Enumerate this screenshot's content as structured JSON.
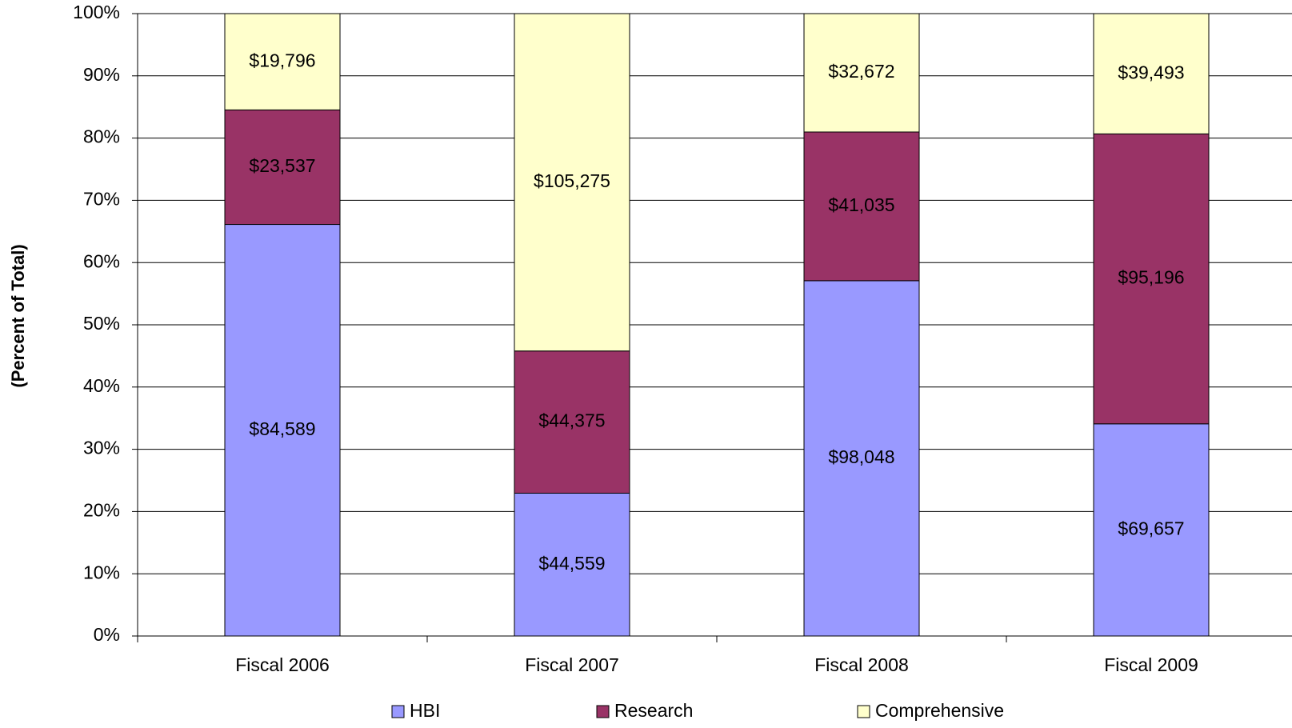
{
  "chart_data": {
    "type": "bar",
    "stacking": "percent",
    "y_label": "(Percent of Total)",
    "categories": [
      "Fiscal 2006",
      "Fiscal 2007",
      "Fiscal 2008",
      "Fiscal 2009"
    ],
    "series": [
      {
        "name": "HBI",
        "color": "#9999ff",
        "values": [
          84589,
          44559,
          98048,
          69657
        ],
        "value_labels": [
          "$84,589",
          "$44,559",
          "$98,048",
          "$69,657"
        ]
      },
      {
        "name": "Research",
        "color": "#993366",
        "values": [
          23537,
          44375,
          41035,
          95196
        ],
        "value_labels": [
          "$23,537",
          "$44,375",
          "$41,035",
          "$95,196"
        ]
      },
      {
        "name": "Comprehensive",
        "color": "#ffffcc",
        "values": [
          19796,
          105275,
          32672,
          39493
        ],
        "value_labels": [
          "$19,796",
          "$105,275",
          "$32,672",
          "$39,493"
        ]
      }
    ],
    "ylim": [
      0,
      100
    ],
    "yticks": [
      {
        "value": 0,
        "label": "0%"
      },
      {
        "value": 10,
        "label": "10%"
      },
      {
        "value": 20,
        "label": "20%"
      },
      {
        "value": 30,
        "label": "30%"
      },
      {
        "value": 40,
        "label": "40%"
      },
      {
        "value": 50,
        "label": "50%"
      },
      {
        "value": 60,
        "label": "60%"
      },
      {
        "value": 70,
        "label": "70%"
      },
      {
        "value": 80,
        "label": "80%"
      },
      {
        "value": 90,
        "label": "90%"
      },
      {
        "value": 100,
        "label": "100%"
      }
    ],
    "grid": true,
    "legend": "bottom"
  }
}
